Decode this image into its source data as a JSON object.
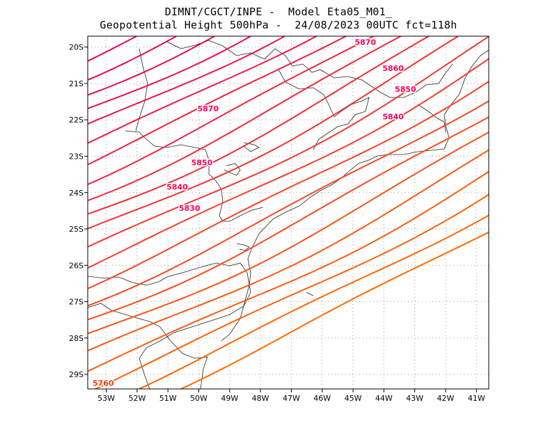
{
  "header": {
    "line1": "DIMNT/CGCT/INPE -  Model Eta05_M01_",
    "line2": "Geopotential Height 500hPa -  24/08/2023 00UTC fct=118h"
  },
  "chart_data": {
    "type": "contour",
    "variable": "Geopotential Height 500hPa",
    "lon_range": [
      -53.6,
      -40.6
    ],
    "lat_range": [
      -29.4,
      -19.7
    ],
    "lat_ticks": [
      "20S",
      "21S",
      "22S",
      "23S",
      "24S",
      "25S",
      "26S",
      "27S",
      "28S",
      "29S"
    ],
    "lon_ticks": [
      "53W",
      "52W",
      "51W",
      "50W",
      "49W",
      "48W",
      "47W",
      "46W",
      "45W",
      "44W",
      "43W",
      "42W",
      "41W"
    ],
    "grid": true,
    "contour_interval": 10,
    "contour_labels": [
      {
        "value": "5870",
        "lon": -44.6,
        "lat": -19.94
      },
      {
        "value": "5860",
        "lon": -43.7,
        "lat": -20.66
      },
      {
        "value": "5850",
        "lon": -43.3,
        "lat": -21.23
      },
      {
        "value": "5840",
        "lon": -43.7,
        "lat": -21.99
      },
      {
        "value": "5870",
        "lon": -49.7,
        "lat": -21.77
      },
      {
        "value": "5850",
        "lon": -49.9,
        "lat": -23.25
      },
      {
        "value": "5840",
        "lon": -50.7,
        "lat": -23.92
      },
      {
        "value": "5830",
        "lon": -50.3,
        "lat": -24.5
      },
      {
        "value": "5760",
        "lon": -53.1,
        "lat": -29.31
      }
    ],
    "color_low": "#ff6a00",
    "color_high": "#e8005a"
  }
}
